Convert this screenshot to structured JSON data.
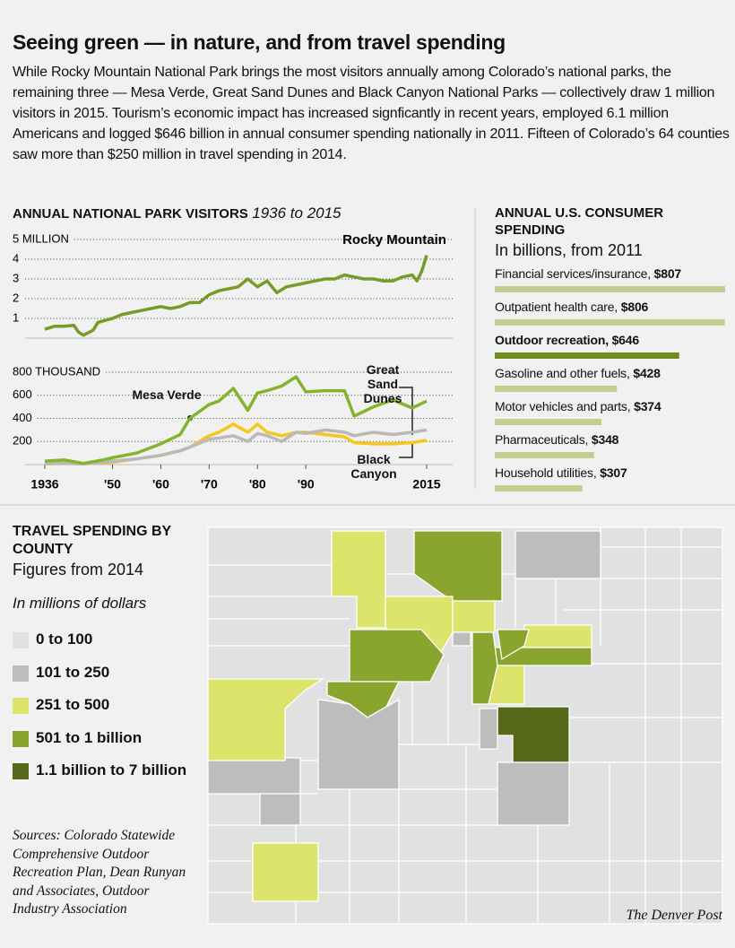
{
  "header": {
    "title": "Seeing green — in nature, and from travel spending",
    "text": "While Rocky Mountain National Park brings the most visitors annually among Colorado’s national parks, the remaining three — Mesa Verde, Great Sand Dunes and Black Canyon National Parks — collectively draw 1 million visitors in 2015. Tourism’s economic impact has increased signficantly in recent years, employed 6.1 million Americans and logged $646 billion in annual consumer spending nationally in 2011. Fifteen of Colorado’s 64 counties saw more than $250 million in travel spending in 2014."
  },
  "chart_data": [
    {
      "type": "line",
      "title": "ANNUAL NATIONAL PARK VISITORS",
      "subtitle": "1936 to 2015",
      "x": [
        1936,
        1938,
        1940,
        1942,
        1943,
        1944,
        1946,
        1947,
        1950,
        1952,
        1954,
        1956,
        1958,
        1960,
        1962,
        1964,
        1966,
        1968,
        1970,
        1972,
        1974,
        1976,
        1978,
        1980,
        1982,
        1984,
        1986,
        1988,
        1990,
        1992,
        1994,
        1996,
        1998,
        2000,
        2002,
        2004,
        2006,
        2008,
        2010,
        2012,
        2013,
        2014,
        2015
      ],
      "xlim": [
        1936,
        2015
      ],
      "ylim": [
        0,
        5
      ],
      "yticks": [
        1,
        2,
        3,
        4,
        {
          "value": 5,
          "label": "5 MILLION"
        }
      ],
      "grid": true,
      "series": [
        {
          "name": "Rocky Mountain",
          "color": "#789a26",
          "values": [
            0.45,
            0.6,
            0.6,
            0.65,
            0.3,
            0.15,
            0.4,
            0.8,
            1.0,
            1.2,
            1.3,
            1.4,
            1.5,
            1.6,
            1.5,
            1.6,
            1.8,
            1.8,
            2.2,
            2.4,
            2.5,
            2.6,
            3.0,
            2.6,
            2.9,
            2.3,
            2.6,
            2.7,
            2.8,
            2.9,
            3.0,
            3.0,
            3.2,
            3.1,
            3.0,
            3.0,
            2.9,
            2.9,
            3.1,
            3.2,
            2.9,
            3.4,
            4.2
          ]
        }
      ]
    },
    {
      "type": "line",
      "x": [
        1936,
        1940,
        1944,
        1948,
        1950,
        1955,
        1960,
        1964,
        1966,
        1970,
        1972,
        1975,
        1978,
        1980,
        1982,
        1985,
        1988,
        1990,
        1994,
        1998,
        2000,
        2004,
        2008,
        2012,
        2015
      ],
      "xlim": [
        1936,
        2015
      ],
      "xticks": [
        1936,
        {
          "value": 1950,
          "label": "'50"
        },
        {
          "value": 1960,
          "label": "'60"
        },
        {
          "value": 1970,
          "label": "'70"
        },
        {
          "value": 1980,
          "label": "'80"
        },
        {
          "value": 1990,
          "label": "'90"
        },
        2015
      ],
      "ylim": [
        0,
        800
      ],
      "yticks": [
        200,
        400,
        600,
        {
          "value": 800,
          "label": "800 THOUSAND"
        }
      ],
      "grid": true,
      "series": [
        {
          "name": "Mesa Verde",
          "color": "#84b32c",
          "values": [
            30,
            40,
            10,
            40,
            60,
            100,
            180,
            260,
            400,
            520,
            550,
            660,
            470,
            620,
            640,
            680,
            760,
            630,
            640,
            640,
            420,
            500,
            560,
            490,
            550
          ]
        },
        {
          "name": "Great Sand Dunes",
          "color": "#b9b9b9",
          "values": [
            10,
            10,
            5,
            20,
            30,
            50,
            80,
            120,
            150,
            220,
            230,
            250,
            200,
            270,
            250,
            200,
            280,
            270,
            300,
            280,
            250,
            280,
            260,
            280,
            300
          ]
        },
        {
          "name": "Black Canyon",
          "color": "#f6c719",
          "values": [
            5,
            10,
            10,
            15,
            20,
            50,
            80,
            120,
            150,
            250,
            280,
            350,
            280,
            350,
            280,
            250,
            280,
            280,
            260,
            240,
            190,
            180,
            180,
            190,
            210
          ]
        }
      ]
    },
    {
      "type": "bar",
      "orientation": "horizontal",
      "title": "ANNUAL U.S. CONSUMER SPENDING",
      "subtitle": "In billions, from 2011",
      "categories": [
        "Financial services/insurance,",
        "Outpatient health care,",
        "Outdoor recreation,",
        "Gasoline and other fuels,",
        "Motor vehicles and parts,",
        "Pharmaceuticals,",
        "Household utilities,"
      ],
      "values": [
        807,
        806,
        646,
        428,
        374,
        348,
        307
      ],
      "value_labels": [
        "$807",
        "$806",
        "$646",
        "$428",
        "$374",
        "$348",
        "$307"
      ],
      "colors": [
        "#c6cd90",
        "#c6cd90",
        "#6f8d1e",
        "#c6cd90",
        "#c6cd90",
        "#c6cd90",
        "#c6cd90"
      ]
    }
  ],
  "map": {
    "title": "TRAVEL SPENDING BY COUNTY",
    "subtitle": "Figures from 2014",
    "unit": "In millions of dollars",
    "legend": [
      {
        "label": "0 to 100",
        "color": "#e1e1e1"
      },
      {
        "label": "101 to 250",
        "color": "#bdbdbd"
      },
      {
        "label": "251 to 500",
        "color": "#dde46c"
      },
      {
        "label": "501 to 1 billion",
        "color": "#8aa52e"
      },
      {
        "label": "1.1 billion to 7 billion",
        "color": "#56691b"
      }
    ]
  },
  "sources": "Sources: Colorado Statewide Comprehensive Outdoor Recreation Plan, Dean Runyan and Associates, Outdoor Industry Association",
  "credit": "The Denver Post"
}
